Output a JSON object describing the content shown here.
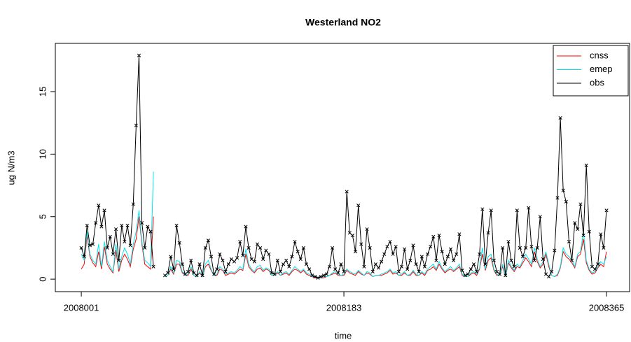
{
  "chart_data": {
    "type": "line",
    "title": "Westerland NO2",
    "xlabel": "time",
    "ylabel": "ug N/m3",
    "xlim": [
      2007983,
      2008381
    ],
    "ylim": [
      -1.0,
      18.86
    ],
    "xticks": [
      2008001,
      2008183,
      2008365
    ],
    "yticks": [
      0,
      5,
      10,
      15
    ],
    "legend": "top-right",
    "x": [
      2008001,
      2008003,
      2008005,
      2008007,
      2008009,
      2008011,
      2008013,
      2008015,
      2008017,
      2008019,
      2008021,
      2008023,
      2008025,
      2008027,
      2008029,
      2008031,
      2008033,
      2008035,
      2008037,
      2008039,
      2008041,
      2008043,
      2008045,
      2008047,
      2008049,
      2008051,
      2008053,
      2008055,
      2008057,
      2008059,
      2008061,
      2008063,
      2008065,
      2008067,
      2008069,
      2008071,
      2008073,
      2008075,
      2008077,
      2008079,
      2008081,
      2008083,
      2008085,
      2008087,
      2008089,
      2008091,
      2008093,
      2008095,
      2008097,
      2008099,
      2008101,
      2008103,
      2008105,
      2008107,
      2008109,
      2008111,
      2008113,
      2008115,
      2008117,
      2008119,
      2008121,
      2008123,
      2008125,
      2008127,
      2008129,
      2008131,
      2008133,
      2008135,
      2008137,
      2008139,
      2008141,
      2008143,
      2008145,
      2008147,
      2008149,
      2008151,
      2008153,
      2008155,
      2008157,
      2008159,
      2008161,
      2008163,
      2008165,
      2008167,
      2008169,
      2008171,
      2008173,
      2008175,
      2008177,
      2008179,
      2008181,
      2008183,
      2008185,
      2008187,
      2008189,
      2008191,
      2008193,
      2008195,
      2008197,
      2008199,
      2008201,
      2008203,
      2008205,
      2008207,
      2008209,
      2008211,
      2008213,
      2008215,
      2008217,
      2008219,
      2008221,
      2008223,
      2008225,
      2008227,
      2008229,
      2008231,
      2008233,
      2008235,
      2008237,
      2008239,
      2008241,
      2008243,
      2008245,
      2008247,
      2008249,
      2008251,
      2008253,
      2008255,
      2008257,
      2008259,
      2008261,
      2008263,
      2008265,
      2008267,
      2008269,
      2008271,
      2008273,
      2008275,
      2008277,
      2008279,
      2008281,
      2008283,
      2008285,
      2008287,
      2008289,
      2008291,
      2008293,
      2008295,
      2008297,
      2008299,
      2008301,
      2008303,
      2008305,
      2008307,
      2008309,
      2008311,
      2008313,
      2008315,
      2008317,
      2008319,
      2008321,
      2008323,
      2008325,
      2008327,
      2008329,
      2008331,
      2008333,
      2008335,
      2008337,
      2008339,
      2008341,
      2008343,
      2008345,
      2008347,
      2008349,
      2008351,
      2008353,
      2008355,
      2008357,
      2008359,
      2008361,
      2008363,
      2008365
    ],
    "series": [
      {
        "name": "cnss",
        "color": "#ff0000",
        "values": [
          0.8,
          1.2,
          3.5,
          1.8,
          1.3,
          1.0,
          2.2,
          0.8,
          2.6,
          1.2,
          0.8,
          0.5,
          2.3,
          0.6,
          1.5,
          2.0,
          1.6,
          1.0,
          2.4,
          3.2,
          5.0,
          2.8,
          1.2,
          1.0,
          0.8,
          5.0,
          null,
          null,
          null,
          0.2,
          0.3,
          0.8,
          0.4,
          1.2,
          1.2,
          0.5,
          0.3,
          0.3,
          0.8,
          0.3,
          0.2,
          0.5,
          0.2,
          1.0,
          1.2,
          0.7,
          0.3,
          0.3,
          0.8,
          0.7,
          0.3,
          0.4,
          0.5,
          0.4,
          0.6,
          0.8,
          0.7,
          2.0,
          1.0,
          0.7,
          0.5,
          0.8,
          0.9,
          0.6,
          0.8,
          0.7,
          0.3,
          0.3,
          0.5,
          0.3,
          0.4,
          0.5,
          0.3,
          0.6,
          0.8,
          0.7,
          0.5,
          0.7,
          0.4,
          0.3,
          0.2,
          0.1,
          0.1,
          0.1,
          0.1,
          0.2,
          0.3,
          0.4,
          0.5,
          0.3,
          0.3,
          0.3,
          0.7,
          0.5,
          0.4,
          0.3,
          0.6,
          0.4,
          0.3,
          0.5,
          0.4,
          0.2,
          0.3,
          0.3,
          0.3,
          0.4,
          0.5,
          0.7,
          0.4,
          0.5,
          0.3,
          0.3,
          0.5,
          0.3,
          0.3,
          0.6,
          0.3,
          0.3,
          0.5,
          0.3,
          0.7,
          0.8,
          1.0,
          0.7,
          1.2,
          0.8,
          0.5,
          0.7,
          0.8,
          0.6,
          0.8,
          1.0,
          0.3,
          0.2,
          0.2,
          0.4,
          0.5,
          0.3,
          0.8,
          2.0,
          0.7,
          1.5,
          1.7,
          0.7,
          0.3,
          0.3,
          1.0,
          0.2,
          1.3,
          0.9,
          0.6,
          1.0,
          0.9,
          1.3,
          1.7,
          1.4,
          1.0,
          2.2,
          1.4,
          0.9,
          1.2,
          2.0,
          1.0,
          0.3,
          0.2,
          0.3,
          0.9,
          2.2,
          1.8,
          1.6,
          1.3,
          0.9,
          1.8,
          2.0,
          3.2,
          1.3,
          0.7,
          0.4,
          0.5,
          0.9,
          1.2,
          1.0,
          2.2
        ]
      },
      {
        "name": "emep",
        "color": "#00e5ee",
        "values": [
          2.0,
          1.5,
          3.8,
          2.0,
          1.5,
          1.2,
          2.8,
          1.0,
          3.0,
          1.5,
          1.0,
          0.6,
          2.8,
          0.8,
          1.8,
          2.5,
          2.0,
          1.2,
          2.8,
          3.8,
          5.5,
          3.0,
          1.5,
          1.3,
          1.0,
          8.6,
          null,
          null,
          null,
          0.2,
          0.3,
          1.0,
          0.5,
          1.5,
          1.4,
          0.6,
          0.3,
          0.4,
          1.0,
          0.3,
          0.2,
          0.6,
          0.2,
          1.2,
          1.5,
          0.8,
          0.3,
          0.4,
          1.0,
          0.8,
          0.4,
          0.5,
          0.6,
          0.5,
          0.7,
          1.0,
          0.8,
          2.4,
          1.2,
          0.8,
          0.6,
          1.0,
          1.1,
          0.7,
          0.9,
          0.8,
          0.3,
          0.3,
          0.6,
          0.3,
          0.5,
          0.6,
          0.4,
          0.7,
          1.0,
          0.8,
          0.6,
          0.8,
          0.5,
          0.4,
          0.2,
          0.2,
          0.1,
          0.1,
          0.2,
          0.2,
          0.3,
          0.5,
          0.6,
          0.4,
          0.3,
          0.4,
          0.8,
          0.6,
          0.5,
          0.4,
          0.7,
          0.5,
          0.3,
          0.6,
          0.5,
          0.2,
          0.3,
          0.3,
          0.4,
          0.5,
          0.6,
          0.8,
          0.5,
          0.6,
          0.3,
          0.4,
          0.6,
          0.3,
          0.4,
          0.7,
          0.4,
          0.3,
          0.6,
          0.4,
          0.8,
          1.0,
          1.2,
          0.8,
          1.4,
          0.9,
          0.6,
          0.8,
          1.0,
          0.7,
          0.9,
          1.2,
          0.4,
          0.2,
          0.2,
          0.5,
          0.6,
          0.4,
          0.9,
          2.5,
          0.8,
          1.8,
          2.0,
          0.8,
          0.4,
          0.3,
          1.2,
          0.2,
          1.5,
          1.0,
          0.7,
          1.2,
          1.0,
          1.5,
          2.0,
          1.6,
          1.2,
          2.5,
          1.6,
          1.0,
          1.4,
          2.2,
          1.2,
          0.3,
          0.2,
          0.4,
          1.0,
          2.5,
          2.0,
          1.8,
          1.5,
          1.0,
          2.0,
          2.2,
          3.8,
          1.5,
          0.8,
          0.5,
          0.6,
          1.0,
          1.4,
          1.2,
          1.8
        ]
      },
      {
        "name": "obs",
        "color": "#000000",
        "marker": "x",
        "values": [
          2.5,
          1.8,
          4.3,
          2.7,
          2.8,
          4.5,
          5.9,
          4.2,
          5.5,
          2.5,
          3.4,
          2.0,
          4.0,
          1.5,
          4.3,
          3.0,
          4.3,
          2.7,
          6.0,
          12.3,
          17.9,
          4.5,
          2.5,
          4.2,
          3.8,
          1.0,
          null,
          null,
          null,
          0.3,
          0.5,
          1.8,
          0.8,
          4.3,
          2.9,
          1.2,
          0.4,
          0.6,
          1.5,
          0.5,
          0.3,
          1.2,
          0.3,
          2.5,
          3.1,
          1.8,
          0.4,
          0.8,
          2.0,
          1.5,
          0.6,
          1.2,
          1.6,
          1.4,
          1.7,
          3.0,
          1.9,
          4.2,
          2.5,
          1.6,
          1.4,
          2.8,
          2.5,
          1.6,
          2.3,
          2.0,
          0.5,
          0.4,
          1.5,
          0.6,
          1.2,
          1.5,
          1.0,
          1.8,
          3.0,
          2.2,
          1.6,
          2.5,
          1.2,
          0.8,
          0.3,
          0.2,
          0.1,
          0.2,
          0.3,
          0.4,
          1.0,
          2.5,
          0.8,
          0.5,
          1.2,
          0.6,
          7.0,
          3.7,
          3.5,
          2.2,
          5.9,
          2.8,
          1.0,
          4.0,
          2.5,
          0.6,
          1.2,
          0.9,
          1.4,
          2.0,
          2.6,
          3.0,
          2.0,
          2.6,
          0.6,
          1.0,
          2.4,
          0.8,
          1.5,
          2.7,
          1.2,
          0.6,
          1.8,
          1.0,
          2.0,
          2.6,
          3.4,
          1.5,
          3.5,
          2.2,
          1.2,
          1.8,
          2.4,
          1.5,
          2.0,
          3.6,
          0.7,
          0.3,
          0.4,
          0.8,
          1.2,
          0.6,
          2.0,
          5.6,
          1.2,
          3.7,
          5.5,
          1.5,
          0.6,
          0.4,
          2.5,
          0.3,
          3.0,
          1.5,
          1.0,
          5.5,
          2.5,
          1.8,
          2.5,
          5.7,
          2.6,
          1.5,
          2.5,
          5.0,
          1.6,
          0.4,
          0.2,
          0.6,
          2.3,
          6.5,
          12.9,
          7.1,
          6.2,
          3.0,
          1.5,
          4.5,
          4.0,
          6.0,
          3.5,
          9.1,
          3.8,
          1.0,
          0.8,
          1.2,
          3.6,
          2.5,
          5.5
        ]
      }
    ]
  }
}
